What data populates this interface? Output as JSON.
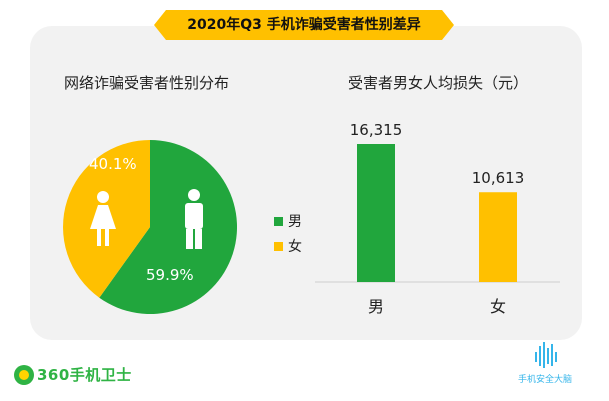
{
  "header": {
    "title": "2020年Q3 手机诈骗受害者性别差异"
  },
  "pie_panel": {
    "title": "网络诈骗受害者性别分布"
  },
  "bar_panel": {
    "title": "受害者男女人均损失（元）"
  },
  "legend": [
    {
      "label": "男",
      "color": "#21a63d"
    },
    {
      "label": "女",
      "color": "#ffc000"
    }
  ],
  "footer": {
    "logo_text": "360手机卫士",
    "watermark_text": "手机安全大脑"
  },
  "chart_data": [
    {
      "type": "pie",
      "title": "网络诈骗受害者性别分布",
      "slices": [
        {
          "label": "男",
          "value": 59.9,
          "display": "59.9%",
          "color": "#21a63d"
        },
        {
          "label": "女",
          "value": 40.1,
          "display": "40.1%",
          "color": "#ffc000"
        }
      ],
      "legend_position": "right"
    },
    {
      "type": "bar",
      "title": "受害者男女人均损失（元）",
      "categories": [
        "男",
        "女"
      ],
      "values": [
        16315,
        10613
      ],
      "value_labels": [
        "16,315",
        "10,613"
      ],
      "colors": [
        "#21a63d",
        "#ffc000"
      ],
      "ylim": [
        0,
        16315
      ],
      "grid": false
    }
  ]
}
